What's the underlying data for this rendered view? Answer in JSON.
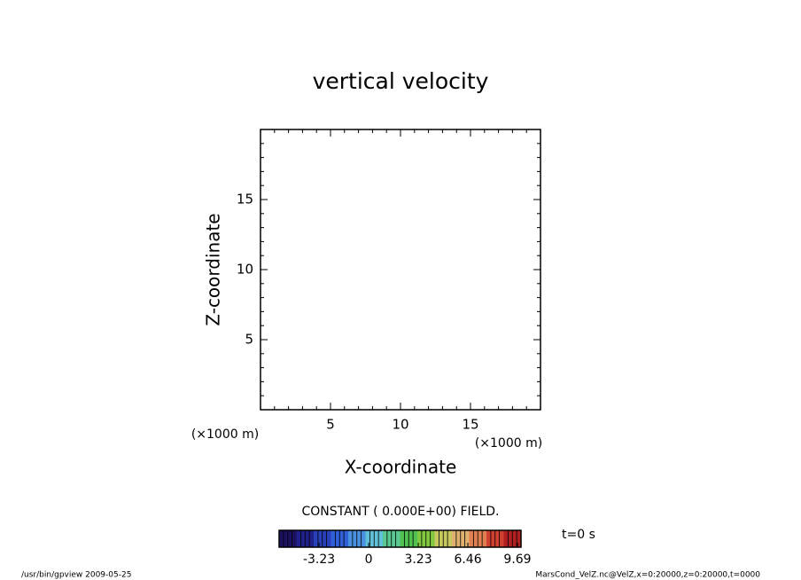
{
  "chart_data": {
    "type": "contour",
    "title": "vertical velocity",
    "xlabel": "X-coordinate",
    "ylabel": "Z-coordinate",
    "xunit": "(×1000 m)",
    "yunit": "(×1000 m)",
    "xlim": [
      0,
      20
    ],
    "ylim": [
      0,
      20
    ],
    "xticks": [
      5,
      10,
      15
    ],
    "yticks": [
      5,
      10,
      15
    ],
    "minor_tick_step": 1,
    "message": "CONSTANT ( 0.000E+00) FIELD.",
    "colorbar": {
      "lim": [
        -5.83,
        9.92
      ],
      "ticks": [
        -3.23,
        0,
        3.23,
        6.46,
        9.69
      ],
      "colors": [
        "#1a1060",
        "#20208a",
        "#2840b8",
        "#3060d8",
        "#4a90e0",
        "#60c0d8",
        "#5ac890",
        "#50c050",
        "#80c840",
        "#c8c860",
        "#e0b070",
        "#e08050",
        "#d04030",
        "#b02020"
      ]
    },
    "time_label": "t=0 s",
    "footer_left": "/usr/bin/gpview   2009-05-25",
    "footer_right": "MarsCond_VelZ.nc@VelZ,x=0:20000,z=0:20000,t=0000"
  }
}
